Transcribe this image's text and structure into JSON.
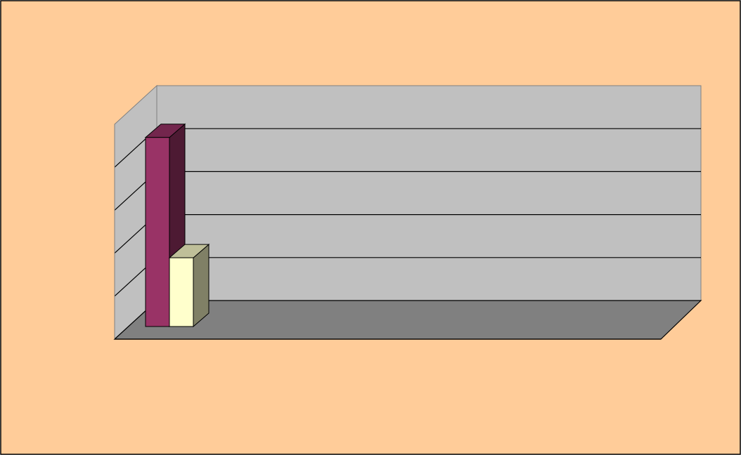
{
  "chart_data": {
    "type": "bar",
    "style": "3d-clustered-column",
    "title": "",
    "xlabel": "",
    "ylabel": "",
    "categories": [
      ""
    ],
    "series": [
      {
        "values": [
          4.4
        ],
        "color": "#993366"
      },
      {
        "values": [
          1.6
        ],
        "color": "#FFFFCC"
      }
    ],
    "ylim": [
      0,
      5
    ],
    "yticks": [
      0,
      1,
      2,
      3,
      4,
      5
    ],
    "grid": true,
    "legend": "none",
    "colors": {
      "chart_area": "#FFCC99",
      "walls": "#C0C0C0",
      "floor": "#808080",
      "gridlines": "#000000"
    }
  }
}
